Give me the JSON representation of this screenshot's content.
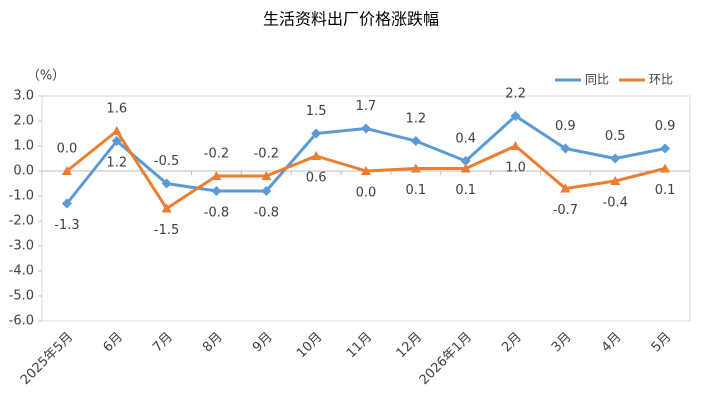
{
  "chart_data": {
    "type": "line",
    "title": "生活资料出厂价格涨跌幅",
    "y_axis_label": "（%）",
    "categories": [
      "2025年5月",
      "6月",
      "7月",
      "8月",
      "9月",
      "10月",
      "11月",
      "12月",
      "2026年1月",
      "2月",
      "3月",
      "4月",
      "5月"
    ],
    "series": [
      {
        "name": "同比",
        "color": "#5b9bd5",
        "marker": "diamond",
        "values": [
          -1.3,
          1.2,
          -0.5,
          -0.8,
          -0.8,
          1.5,
          1.7,
          1.2,
          0.4,
          2.2,
          0.9,
          0.5,
          0.9
        ],
        "value_labels": [
          "-1.3",
          "1.2",
          "-0.5",
          "-0.8",
          "-0.8",
          "1.5",
          "1.7",
          "1.2",
          "0.4",
          "2.2",
          "0.9",
          "0.5",
          "0.9"
        ]
      },
      {
        "name": "环比",
        "color": "#ed7d31",
        "marker": "triangle",
        "values": [
          0,
          1.6,
          -1.5,
          -0.2,
          -0.2,
          0.6,
          0,
          0.1,
          0.1,
          1,
          -0.7,
          -0.4,
          0.1
        ],
        "value_labels": [
          "0.0",
          "1.6",
          "-1.5",
          "-0.2",
          "-0.2",
          "0.6",
          "0.0",
          "0.1",
          "0.1",
          "1.0",
          "-0.7",
          "-0.4",
          "0.1"
        ]
      }
    ],
    "ylim": [
      -6,
      3
    ],
    "yticks": [
      {
        "value": 3,
        "label": "3.0"
      },
      {
        "value": 2,
        "label": "2.0"
      },
      {
        "value": 1,
        "label": "1.0"
      },
      {
        "value": 0,
        "label": "0.0"
      },
      {
        "value": -1,
        "label": "-1.0"
      },
      {
        "value": -2,
        "label": "-2.0"
      },
      {
        "value": -3,
        "label": "-3.0"
      },
      {
        "value": -4,
        "label": "-4.0"
      },
      {
        "value": -5,
        "label": "-5.0"
      },
      {
        "value": -6,
        "label": "-6.0"
      }
    ],
    "legend": "top-right"
  }
}
